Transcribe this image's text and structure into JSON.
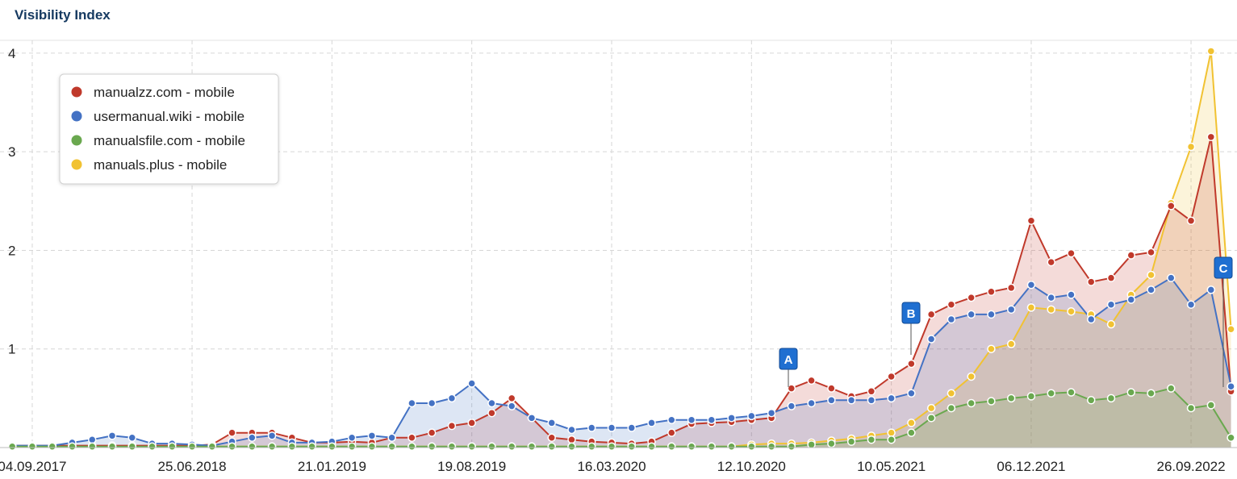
{
  "chart_data": {
    "type": "area",
    "title": "Visibility Index",
    "categories": [
      null,
      "04.09.2017",
      null,
      null,
      null,
      null,
      null,
      null,
      null,
      "25.06.2018",
      null,
      null,
      null,
      null,
      null,
      null,
      "21.01.2019",
      null,
      null,
      null,
      null,
      null,
      null,
      "19.08.2019",
      null,
      null,
      null,
      null,
      null,
      null,
      "16.03.2020",
      null,
      null,
      null,
      null,
      null,
      null,
      "12.10.2020",
      null,
      null,
      null,
      null,
      null,
      null,
      "10.05.2021",
      null,
      null,
      null,
      null,
      null,
      null,
      "06.12.2021",
      null,
      null,
      null,
      null,
      null,
      null,
      null,
      "26.09.2022",
      null,
      null
    ],
    "series": [
      {
        "name": "manualzz.com - mobile",
        "color": "#c0392b",
        "values": [
          0.02,
          0.02,
          0.02,
          0.02,
          0.02,
          0.02,
          0.02,
          0.02,
          0.02,
          0.02,
          0.03,
          0.15,
          0.15,
          0.15,
          0.1,
          0.05,
          0.05,
          0.06,
          0.05,
          0.1,
          0.1,
          0.15,
          0.22,
          0.25,
          0.35,
          0.5,
          0.3,
          0.1,
          0.08,
          0.06,
          0.05,
          0.04,
          0.06,
          0.15,
          0.24,
          0.25,
          0.26,
          0.28,
          0.3,
          0.6,
          0.68,
          0.6,
          0.52,
          0.57,
          0.72,
          0.85,
          1.35,
          1.45,
          1.52,
          1.58,
          1.62,
          2.3,
          1.88,
          1.97,
          1.68,
          1.72,
          1.95,
          1.98,
          2.45,
          2.3,
          3.15,
          0.57
        ]
      },
      {
        "name": "usermanual.wiki - mobile",
        "color": "#4472c4",
        "values": [
          0.02,
          0.02,
          0.02,
          0.05,
          0.08,
          0.12,
          0.1,
          0.04,
          0.04,
          0.03,
          0.02,
          0.06,
          0.1,
          0.12,
          0.05,
          0.05,
          0.06,
          0.1,
          0.12,
          0.1,
          0.45,
          0.45,
          0.5,
          0.65,
          0.45,
          0.42,
          0.3,
          0.25,
          0.18,
          0.2,
          0.2,
          0.2,
          0.25,
          0.28,
          0.28,
          0.28,
          0.3,
          0.32,
          0.35,
          0.42,
          0.45,
          0.48,
          0.48,
          0.48,
          0.5,
          0.55,
          1.1,
          1.3,
          1.35,
          1.35,
          1.4,
          1.65,
          1.52,
          1.55,
          1.3,
          1.45,
          1.5,
          1.6,
          1.72,
          1.45,
          1.6,
          0.62
        ]
      },
      {
        "name": "manualsfile.com - mobile",
        "color": "#6aa84f",
        "values": [
          0.01,
          0.01,
          0.01,
          0.01,
          0.01,
          0.01,
          0.01,
          0.01,
          0.01,
          0.01,
          0.01,
          0.01,
          0.01,
          0.01,
          0.01,
          0.01,
          0.01,
          0.01,
          0.01,
          0.01,
          0.01,
          0.01,
          0.01,
          0.01,
          0.01,
          0.01,
          0.01,
          0.01,
          0.01,
          0.01,
          0.01,
          0.01,
          0.01,
          0.01,
          0.01,
          0.01,
          0.01,
          0.01,
          0.01,
          0.01,
          0.03,
          0.04,
          0.06,
          0.08,
          0.08,
          0.15,
          0.3,
          0.4,
          0.45,
          0.47,
          0.5,
          0.52,
          0.55,
          0.56,
          0.48,
          0.5,
          0.56,
          0.55,
          0.6,
          0.4,
          0.43,
          0.1
        ]
      },
      {
        "name": "manuals.plus - mobile",
        "color": "#f1c232",
        "values": [
          0.01,
          0.01,
          0.01,
          0.01,
          0.01,
          0.01,
          0.01,
          0.01,
          0.01,
          0.01,
          0.01,
          0.01,
          0.01,
          0.01,
          0.01,
          0.01,
          0.01,
          0.01,
          0.01,
          0.01,
          0.01,
          0.01,
          0.01,
          0.01,
          0.01,
          0.01,
          0.01,
          0.01,
          0.01,
          0.01,
          0.01,
          0.01,
          0.01,
          0.01,
          0.01,
          0.01,
          0.01,
          0.03,
          0.04,
          0.04,
          0.05,
          0.07,
          0.09,
          0.12,
          0.15,
          0.25,
          0.4,
          0.55,
          0.72,
          1.0,
          1.05,
          1.42,
          1.4,
          1.38,
          1.35,
          1.25,
          1.55,
          1.75,
          2.48,
          3.05,
          4.02,
          1.2
        ]
      }
    ],
    "ylim": [
      0,
      4.13
    ],
    "yticks": [
      1,
      2,
      3,
      4
    ],
    "grid": true,
    "legend": "top-left",
    "annotations": [
      "A",
      "B",
      "C"
    ]
  }
}
